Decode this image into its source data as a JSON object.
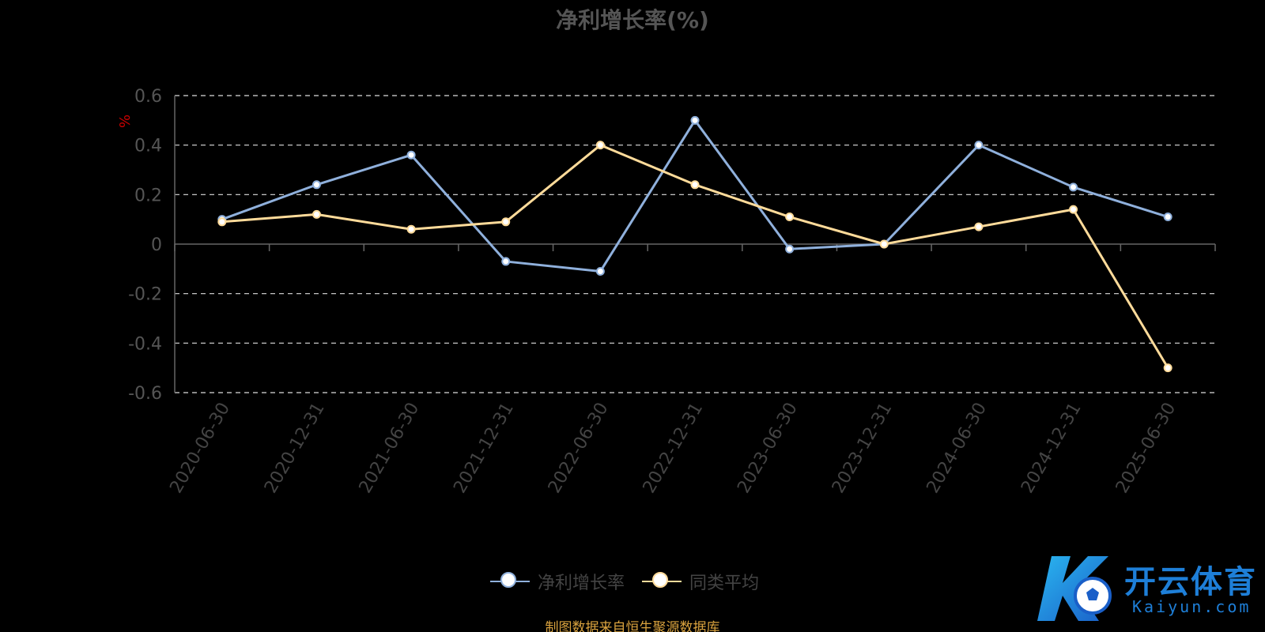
{
  "chart_data": {
    "type": "line",
    "title": "净利增长率(%)",
    "ylabel": "%",
    "xlabel": "",
    "categories": [
      "2020-06-30",
      "2020-12-31",
      "2021-06-30",
      "2021-12-31",
      "2022-06-30",
      "2022-12-31",
      "2023-06-30",
      "2023-12-31",
      "2024-06-30",
      "2024-12-31",
      "2025-06-30"
    ],
    "yticks": [
      "0.6",
      "0.4",
      "0.2",
      "0",
      "-0.2",
      "-0.4",
      "-0.6"
    ],
    "ylim": [
      -0.6,
      0.6
    ],
    "grid": true,
    "legend_position": "bottom",
    "series": [
      {
        "name": "净利增长率",
        "color": "#8fb0dc",
        "values": [
          0.1,
          0.24,
          0.36,
          -0.07,
          -0.11,
          0.5,
          -0.02,
          0.0,
          0.4,
          0.23,
          0.11
        ]
      },
      {
        "name": "同类平均",
        "color": "#ffdb9a",
        "values": [
          0.09,
          0.12,
          0.06,
          0.09,
          0.4,
          0.24,
          0.11,
          0.0,
          0.07,
          0.14,
          -0.5
        ]
      }
    ]
  },
  "footer": {
    "source": "制图数据来自恒生聚源数据库"
  },
  "watermark": {
    "logo_letter": "K",
    "name": "开云体育",
    "domain": "Kaiyun.com",
    "color": "#1e7fd8"
  }
}
